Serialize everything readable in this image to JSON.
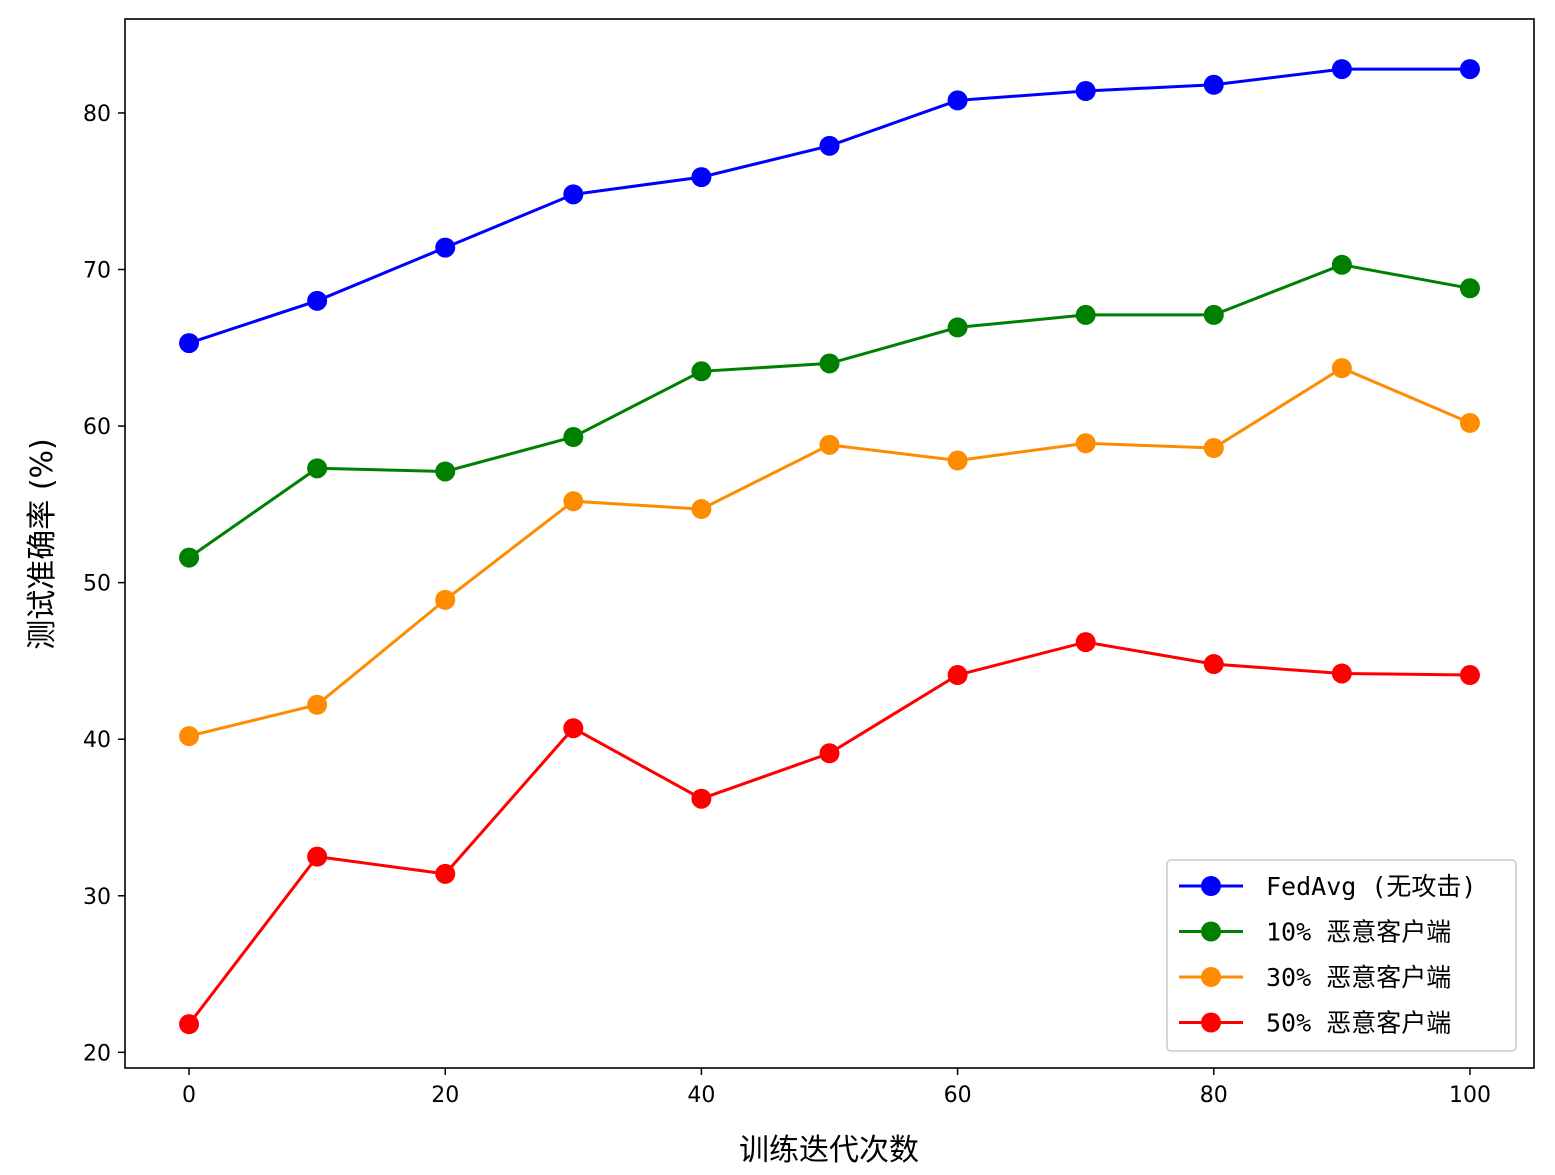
{
  "chart_data": {
    "type": "line",
    "xlabel": "训练迭代次数",
    "ylabel": "测试准确率 (%)",
    "x": [
      0,
      10,
      20,
      30,
      40,
      50,
      60,
      70,
      80,
      90,
      100
    ],
    "xlim": [
      -5,
      105
    ],
    "ylim": [
      19,
      86
    ],
    "xticks": [
      0,
      20,
      40,
      60,
      80,
      100
    ],
    "yticks": [
      20,
      30,
      40,
      50,
      60,
      70,
      80
    ],
    "grid": false,
    "legend_position": "lower-right",
    "marker": "circle",
    "series": [
      {
        "name": "FedAvg (无攻击)",
        "color": "#0000ff",
        "values": [
          65.3,
          68.0,
          71.4,
          74.8,
          75.9,
          77.9,
          80.8,
          81.4,
          81.8,
          82.8,
          82.8
        ]
      },
      {
        "name": "10% 恶意客户端",
        "color": "#008000",
        "values": [
          51.6,
          57.3,
          57.1,
          59.3,
          63.5,
          64.0,
          66.3,
          67.1,
          67.1,
          70.3,
          68.8
        ]
      },
      {
        "name": "30% 恶意客户端",
        "color": "#ff8c00",
        "values": [
          40.2,
          42.2,
          48.9,
          55.2,
          54.7,
          58.8,
          57.8,
          58.9,
          58.6,
          63.7,
          60.2
        ]
      },
      {
        "name": "50% 恶意客户端",
        "color": "#ff0000",
        "values": [
          21.8,
          32.5,
          31.4,
          40.7,
          36.2,
          39.1,
          44.1,
          46.2,
          44.8,
          44.2,
          44.1
        ]
      }
    ]
  }
}
